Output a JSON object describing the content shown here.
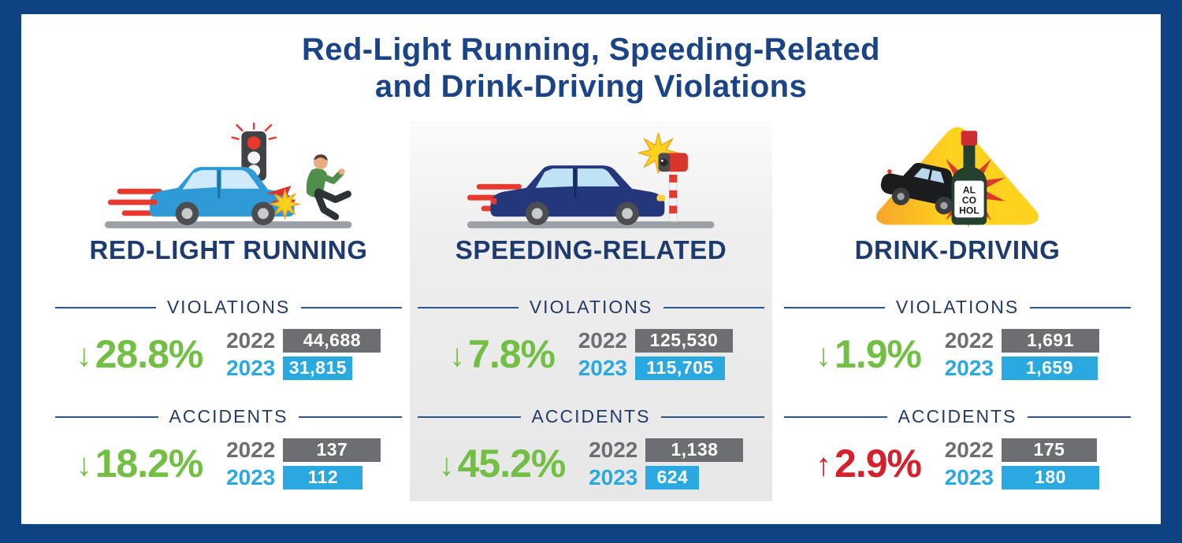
{
  "title": {
    "line1": "Red-Light Running, Speeding-Related",
    "line2": "and Drink-Driving Violations"
  },
  "colors": {
    "frame_navy": "#0d4283",
    "title_navy": "#1b4487",
    "heading_navy": "#1e3b70",
    "divider_navy": "#2a5594",
    "decrease_green": "#72bf44",
    "increase_red": "#d7202e",
    "bar_2022_gray": "#6d6e71",
    "bar_2023_blue": "#29a9e0"
  },
  "alcohol_bottle_label": {
    "line1": "AL",
    "line2": "CO",
    "line3": "HOL"
  },
  "chart_data": [
    {
      "type": "bar",
      "heading": "RED-LIGHT RUNNING",
      "illustration": "car-hitting-pedestrian-at-red-light",
      "sections": [
        {
          "label": "VIOLATIONS",
          "change": {
            "arrow": "↓",
            "text": "28.8%",
            "direction": "down",
            "color": "#72bf44"
          },
          "bars": [
            {
              "year": "2022",
              "value": 44688,
              "display": "44,688",
              "color": "#6d6e71"
            },
            {
              "year": "2023",
              "value": 31815,
              "display": "31,815",
              "color": "#29a9e0"
            }
          ]
        },
        {
          "label": "ACCIDENTS",
          "change": {
            "arrow": "↓",
            "text": "18.2%",
            "direction": "down",
            "color": "#72bf44"
          },
          "bars": [
            {
              "year": "2022",
              "value": 137,
              "display": "137",
              "color": "#6d6e71"
            },
            {
              "year": "2023",
              "value": 112,
              "display": "112",
              "color": "#29a9e0"
            }
          ]
        }
      ]
    },
    {
      "type": "bar",
      "heading": "SPEEDING-RELATED",
      "illustration": "speeding-car-passing-speed-camera",
      "sections": [
        {
          "label": "VIOLATIONS",
          "change": {
            "arrow": "↓",
            "text": "7.8%",
            "direction": "down",
            "color": "#72bf44"
          },
          "bars": [
            {
              "year": "2022",
              "value": 125530,
              "display": "125,530",
              "color": "#6d6e71"
            },
            {
              "year": "2023",
              "value": 115705,
              "display": "115,705",
              "color": "#29a9e0"
            }
          ]
        },
        {
          "label": "ACCIDENTS",
          "change": {
            "arrow": "↓",
            "text": "45.2%",
            "direction": "down",
            "color": "#72bf44"
          },
          "bars": [
            {
              "year": "2022",
              "value": 1138,
              "display": "1,138",
              "color": "#6d6e71"
            },
            {
              "year": "2023",
              "value": 624,
              "display": "624",
              "color": "#29a9e0"
            }
          ]
        }
      ]
    },
    {
      "type": "bar",
      "heading": "DRINK-DRIVING",
      "illustration": "car-crashing-into-alcohol-bottle-warning-triangle",
      "sections": [
        {
          "label": "VIOLATIONS",
          "change": {
            "arrow": "↓",
            "text": "1.9%",
            "direction": "down",
            "color": "#72bf44"
          },
          "bars": [
            {
              "year": "2022",
              "value": 1691,
              "display": "1,691",
              "color": "#6d6e71"
            },
            {
              "year": "2023",
              "value": 1659,
              "display": "1,659",
              "color": "#29a9e0"
            }
          ]
        },
        {
          "label": "ACCIDENTS",
          "change": {
            "arrow": "↑",
            "text": "2.9%",
            "direction": "up",
            "color": "#d7202e"
          },
          "bars": [
            {
              "year": "2022",
              "value": 175,
              "display": "175",
              "color": "#6d6e71"
            },
            {
              "year": "2023",
              "value": 180,
              "display": "180",
              "color": "#29a9e0"
            }
          ]
        }
      ]
    }
  ]
}
